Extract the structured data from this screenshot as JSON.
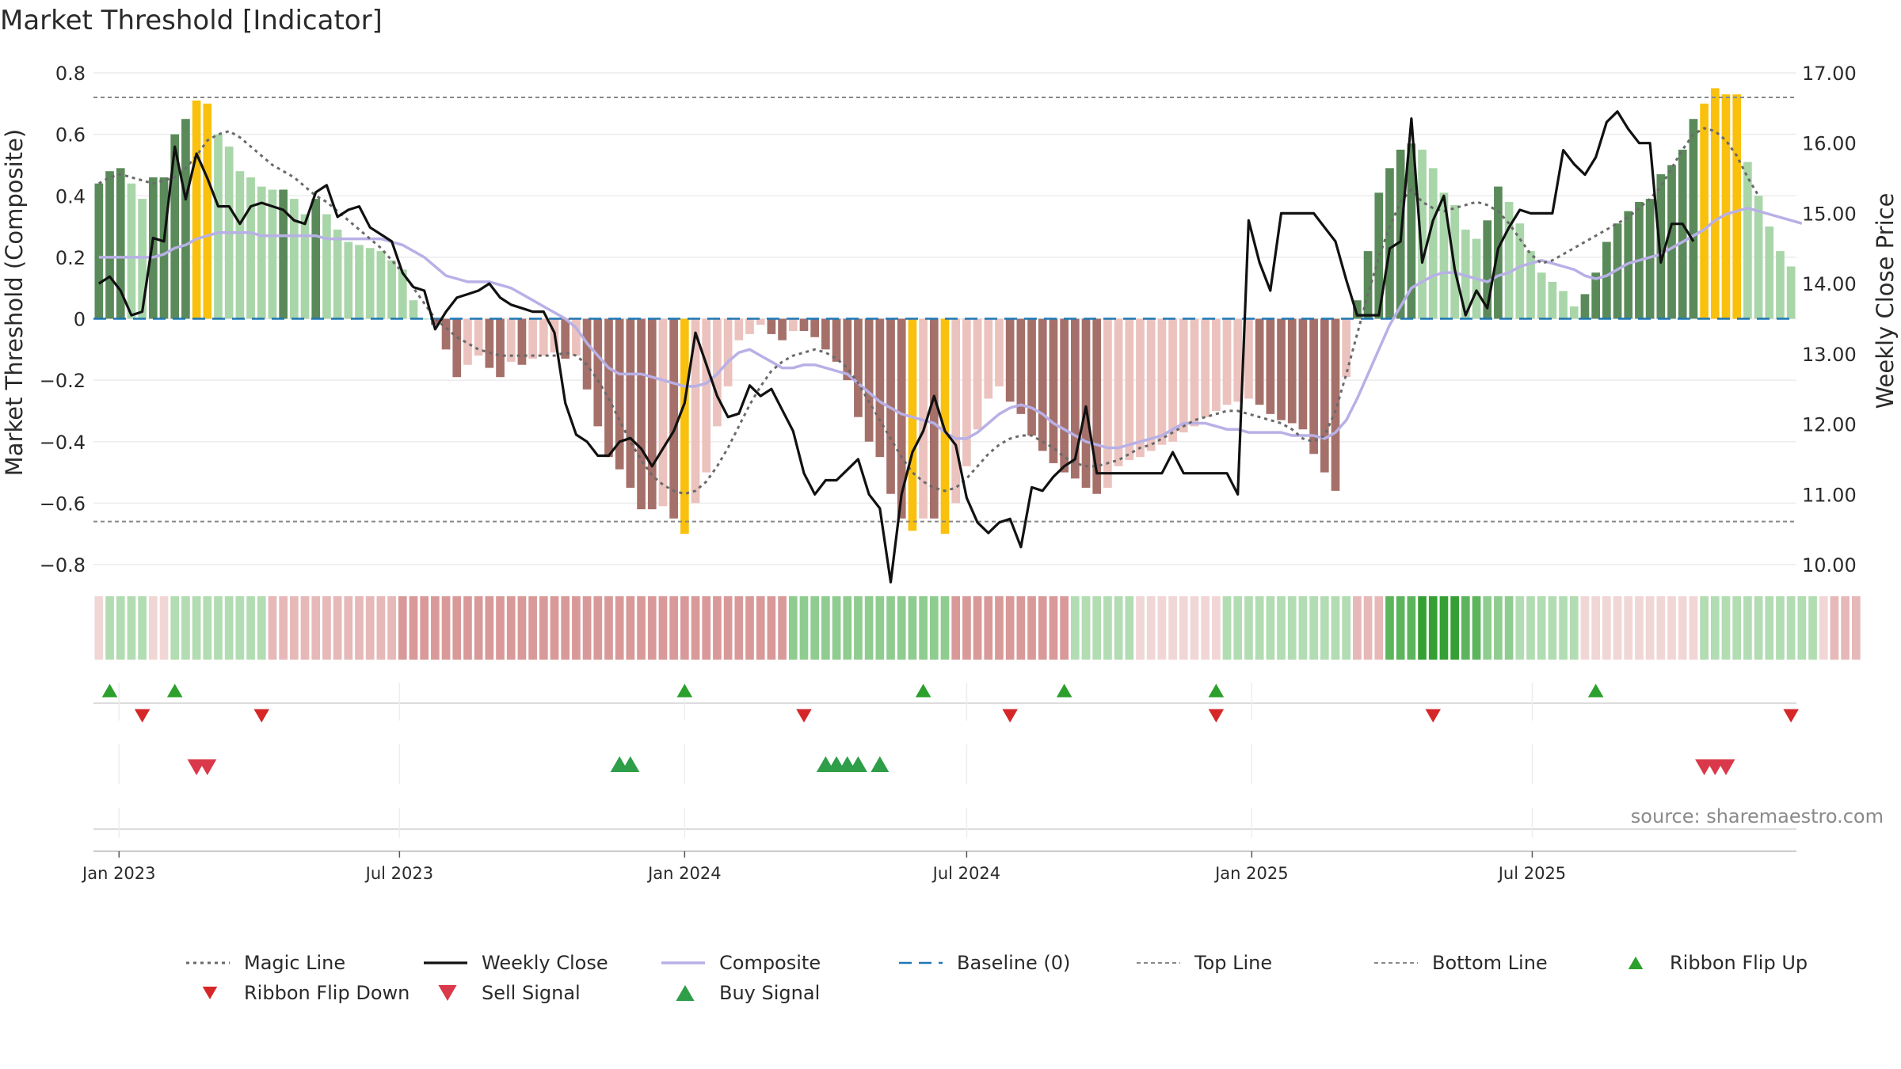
{
  "chart_data": {
    "type": "bar",
    "title": "Market Threshold [Indicator]",
    "ylabel_left": "Market Threshold (Composite)",
    "ylabel_right": "Weekly Close Price",
    "ylim_left": [
      -0.8,
      0.8
    ],
    "ylim_right": [
      10.0,
      17.0
    ],
    "y_ticks_left": [
      {
        "v": 0.8,
        "label": "0.8"
      },
      {
        "v": 0.6,
        "label": "0.6"
      },
      {
        "v": 0.4,
        "label": "0.4"
      },
      {
        "v": 0.2,
        "label": "0.2"
      },
      {
        "v": 0,
        "label": "0"
      },
      {
        "v": -0.2,
        "label": "−0.2"
      },
      {
        "v": -0.4,
        "label": "−0.4"
      },
      {
        "v": -0.6,
        "label": "−0.6"
      },
      {
        "v": -0.8,
        "label": "−0.8"
      }
    ],
    "y_ticks_right": [
      "17.00",
      "16.00",
      "15.00",
      "14.00",
      "13.00",
      "12.00",
      "11.00",
      "10.00"
    ],
    "x_ticks": [
      "Jan 2023",
      "Jul 2023",
      "Jan 2024",
      "Jul 2024",
      "Jan 2025",
      "Jul 2025"
    ],
    "top_line": 0.72,
    "bottom_line": -0.66,
    "baseline": 0,
    "composite_bars": [
      0.44,
      0.48,
      0.49,
      0.44,
      0.39,
      0.46,
      0.46,
      0.6,
      0.65,
      0.71,
      0.7,
      0.6,
      0.56,
      0.48,
      0.46,
      0.43,
      0.42,
      0.42,
      0.39,
      0.34,
      0.39,
      0.34,
      0.29,
      0.25,
      0.24,
      0.23,
      0.22,
      0.19,
      0.16,
      0.06,
      0,
      -0.02,
      -0.1,
      -0.19,
      -0.15,
      -0.12,
      -0.16,
      -0.19,
      -0.14,
      -0.15,
      -0.13,
      -0.12,
      -0.11,
      -0.13,
      -0.12,
      -0.23,
      -0.35,
      -0.45,
      -0.49,
      -0.55,
      -0.62,
      -0.62,
      -0.61,
      -0.65,
      -0.7,
      -0.6,
      -0.5,
      -0.35,
      -0.22,
      -0.07,
      -0.05,
      -0.02,
      -0.05,
      -0.07,
      -0.04,
      -0.04,
      -0.06,
      -0.1,
      -0.14,
      -0.2,
      -0.32,
      -0.4,
      -0.45,
      -0.57,
      -0.65,
      -0.69,
      -0.65,
      -0.65,
      -0.7,
      -0.6,
      -0.48,
      -0.36,
      -0.26,
      -0.22,
      -0.27,
      -0.31,
      -0.38,
      -0.43,
      -0.47,
      -0.5,
      -0.52,
      -0.55,
      -0.57,
      -0.55,
      -0.48,
      -0.46,
      -0.45,
      -0.43,
      -0.41,
      -0.4,
      -0.37,
      -0.35,
      -0.32,
      -0.3,
      -0.28,
      -0.27,
      -0.26,
      -0.28,
      -0.31,
      -0.33,
      -0.34,
      -0.36,
      -0.44,
      -0.5,
      -0.56,
      -0.19,
      0.06,
      0.22,
      0.41,
      0.49,
      0.55,
      0.57,
      0.55,
      0.49,
      0.41,
      0.37,
      0.29,
      0.26,
      0.32,
      0.43,
      0.38,
      0.31,
      0.22,
      0.15,
      0.12,
      0.09,
      0.04,
      0.08,
      0.15,
      0.25,
      0.31,
      0.35,
      0.38,
      0.39,
      0.47,
      0.5,
      0.55,
      0.65,
      0.7,
      0.75,
      0.73,
      0.73,
      0.51,
      0.4,
      0.3,
      0.22,
      0.17
    ],
    "bar_highlight_label": "magnitude above 0.68 shown in amber",
    "magic_line": [
      0.44,
      0.46,
      0.47,
      0.46,
      0.45,
      0.44,
      0.45,
      0.46,
      0.49,
      0.53,
      0.58,
      0.6,
      0.61,
      0.59,
      0.56,
      0.53,
      0.5,
      0.48,
      0.46,
      0.43,
      0.4,
      0.38,
      0.35,
      0.32,
      0.29,
      0.26,
      0.23,
      0.19,
      0.15,
      0.1,
      0.05,
      0.0,
      -0.03,
      -0.06,
      -0.08,
      -0.1,
      -0.11,
      -0.12,
      -0.12,
      -0.12,
      -0.12,
      -0.12,
      -0.12,
      -0.11,
      -0.12,
      -0.15,
      -0.2,
      -0.26,
      -0.33,
      -0.4,
      -0.46,
      -0.51,
      -0.54,
      -0.56,
      -0.57,
      -0.56,
      -0.53,
      -0.48,
      -0.42,
      -0.35,
      -0.28,
      -0.22,
      -0.17,
      -0.14,
      -0.12,
      -0.11,
      -0.1,
      -0.11,
      -0.13,
      -0.16,
      -0.21,
      -0.27,
      -0.33,
      -0.39,
      -0.45,
      -0.5,
      -0.53,
      -0.55,
      -0.56,
      -0.55,
      -0.52,
      -0.48,
      -0.44,
      -0.41,
      -0.39,
      -0.38,
      -0.38,
      -0.4,
      -0.42,
      -0.45,
      -0.47,
      -0.48,
      -0.48,
      -0.47,
      -0.46,
      -0.44,
      -0.42,
      -0.41,
      -0.39,
      -0.37,
      -0.35,
      -0.33,
      -0.32,
      -0.31,
      -0.3,
      -0.3,
      -0.31,
      -0.32,
      -0.33,
      -0.34,
      -0.36,
      -0.39,
      -0.4,
      -0.38,
      -0.3,
      -0.18,
      -0.05,
      0.08,
      0.2,
      0.3,
      0.38,
      0.42,
      0.38,
      0.36,
      0.35,
      0.36,
      0.37,
      0.38,
      0.37,
      0.35,
      0.31,
      0.26,
      0.21,
      0.18,
      0.19,
      0.21,
      0.23,
      0.25,
      0.27,
      0.29,
      0.31,
      0.33,
      0.36,
      0.39,
      0.43,
      0.49,
      0.55,
      0.6,
      0.62,
      0.61,
      0.58,
      0.53,
      0.46,
      0.4
    ],
    "composite_line": [
      0.2,
      0.2,
      0.2,
      0.2,
      0.2,
      0.2,
      0.21,
      0.23,
      0.24,
      0.26,
      0.27,
      0.28,
      0.28,
      0.28,
      0.28,
      0.27,
      0.27,
      0.27,
      0.27,
      0.27,
      0.27,
      0.26,
      0.26,
      0.26,
      0.26,
      0.26,
      0.26,
      0.25,
      0.24,
      0.22,
      0.2,
      0.17,
      0.14,
      0.13,
      0.12,
      0.12,
      0.12,
      0.11,
      0.1,
      0.08,
      0.06,
      0.04,
      0.02,
      0.0,
      -0.03,
      -0.08,
      -0.12,
      -0.16,
      -0.18,
      -0.18,
      -0.18,
      -0.19,
      -0.2,
      -0.21,
      -0.22,
      -0.22,
      -0.21,
      -0.18,
      -0.14,
      -0.11,
      -0.1,
      -0.12,
      -0.14,
      -0.16,
      -0.16,
      -0.15,
      -0.15,
      -0.16,
      -0.17,
      -0.18,
      -0.21,
      -0.24,
      -0.27,
      -0.29,
      -0.31,
      -0.32,
      -0.33,
      -0.34,
      -0.37,
      -0.39,
      -0.39,
      -0.37,
      -0.34,
      -0.31,
      -0.29,
      -0.28,
      -0.29,
      -0.31,
      -0.34,
      -0.36,
      -0.38,
      -0.4,
      -0.41,
      -0.42,
      -0.42,
      -0.41,
      -0.4,
      -0.39,
      -0.38,
      -0.36,
      -0.34,
      -0.34,
      -0.34,
      -0.35,
      -0.36,
      -0.36,
      -0.37,
      -0.37,
      -0.37,
      -0.37,
      -0.38,
      -0.38,
      -0.38,
      -0.39,
      -0.37,
      -0.33,
      -0.26,
      -0.18,
      -0.1,
      -0.02,
      0.04,
      0.1,
      0.12,
      0.14,
      0.15,
      0.15,
      0.14,
      0.13,
      0.12,
      0.14,
      0.15,
      0.17,
      0.18,
      0.19,
      0.18,
      0.17,
      0.16,
      0.14,
      0.13,
      0.14,
      0.16,
      0.18,
      0.19,
      0.2,
      0.21,
      0.23,
      0.25,
      0.27,
      0.29,
      0.32,
      0.34,
      0.35,
      0.36,
      0.35,
      0.34,
      0.33,
      0.32,
      0.31
    ],
    "weekly_close": [
      14.0,
      14.1,
      13.9,
      13.55,
      13.6,
      14.65,
      14.6,
      15.95,
      15.2,
      15.85,
      15.5,
      15.1,
      15.1,
      14.85,
      15.1,
      15.15,
      15.1,
      15.05,
      14.9,
      14.85,
      15.3,
      15.4,
      14.95,
      15.05,
      15.1,
      14.8,
      14.7,
      14.6,
      14.15,
      13.95,
      13.9,
      13.35,
      13.6,
      13.8,
      13.85,
      13.9,
      14.0,
      13.8,
      13.7,
      13.65,
      13.6,
      13.6,
      13.3,
      12.3,
      11.85,
      11.75,
      11.55,
      11.55,
      11.75,
      11.8,
      11.65,
      11.4,
      11.65,
      11.9,
      12.3,
      13.3,
      12.85,
      12.4,
      12.1,
      12.15,
      12.55,
      12.4,
      12.5,
      12.2,
      11.9,
      11.3,
      11.0,
      11.2,
      11.2,
      11.35,
      11.5,
      11.0,
      10.8,
      9.75,
      11.0,
      11.6,
      11.9,
      12.4,
      11.9,
      11.7,
      10.95,
      10.6,
      10.45,
      10.6,
      10.65,
      10.25,
      11.1,
      11.05,
      11.25,
      11.4,
      11.5,
      12.25,
      11.3,
      11.3,
      11.3,
      11.3,
      11.3,
      11.3,
      11.3,
      11.6,
      11.3,
      11.3,
      11.3,
      11.3,
      11.3,
      11.0,
      14.9,
      14.3,
      13.9,
      15.0,
      15.0,
      15.0,
      15.0,
      14.8,
      14.6,
      14.05,
      13.55,
      13.55,
      13.55,
      14.5,
      14.6,
      16.35,
      14.3,
      14.9,
      15.25,
      14.2,
      13.55,
      13.9,
      13.65,
      14.5,
      14.8,
      15.05,
      15.0,
      15.0,
      15.0,
      15.9,
      15.7,
      15.55,
      15.8,
      16.3,
      16.45,
      16.2,
      16.0,
      16.0,
      14.3,
      14.85,
      14.85,
      14.6
    ],
    "ribbon": [
      -1,
      1,
      1,
      1,
      1,
      -1,
      -1,
      1,
      1,
      1,
      1,
      1,
      1,
      1,
      1,
      1,
      -2,
      -2,
      -2,
      -2,
      -2,
      -2,
      -2,
      -2,
      -2,
      -2,
      -2,
      -2,
      -3,
      -3,
      -3,
      -3,
      -3,
      -3,
      -3,
      -3,
      -3,
      -3,
      -3,
      -3,
      -3,
      -3,
      -3,
      -3,
      -3,
      -3,
      -3,
      -3,
      -3,
      -3,
      -3,
      -3,
      -3,
      -3,
      -3,
      -3,
      -3,
      -3,
      -3,
      -3,
      -3,
      -3,
      -3,
      -3,
      2,
      2,
      2,
      2,
      2,
      2,
      2,
      2,
      2,
      2,
      2,
      2,
      2,
      2,
      2,
      -3,
      -3,
      -3,
      -3,
      -3,
      -3,
      -3,
      -3,
      -3,
      -3,
      -3,
      1,
      1,
      1,
      1,
      1,
      1,
      -1,
      -1,
      -1,
      -1,
      -1,
      -1,
      -1,
      -1,
      1,
      1,
      1,
      1,
      1,
      1,
      1,
      1,
      1,
      1,
      1,
      1,
      -2,
      -2,
      -2,
      3,
      3,
      3,
      4,
      4,
      4,
      4,
      3,
      3,
      2,
      2,
      2,
      1,
      1,
      1,
      1,
      1,
      1,
      -1,
      -1,
      -1,
      -1,
      -1,
      -1,
      -1,
      -1,
      -1,
      -1,
      -1,
      1,
      1,
      1,
      1,
      1,
      1,
      1,
      1,
      1,
      1,
      1,
      -1,
      -2,
      -2,
      -2
    ],
    "ribbon_flip_up_at": [
      1,
      7,
      54,
      76,
      89,
      103,
      138
    ],
    "ribbon_flip_down_at": [
      4,
      15,
      65,
      84,
      103,
      123,
      156
    ],
    "sell_signal_at": [
      9,
      10,
      148,
      149,
      150
    ],
    "buy_signal_at": [
      48,
      49,
      67,
      68,
      69,
      70,
      72
    ],
    "legend": [
      {
        "key": "magic",
        "label": "Magic Line"
      },
      {
        "key": "close",
        "label": "Weekly Close"
      },
      {
        "key": "composite",
        "label": "Composite"
      },
      {
        "key": "baseline",
        "label": "Baseline (0)"
      },
      {
        "key": "top",
        "label": "Top Line"
      },
      {
        "key": "bottom",
        "label": "Bottom Line"
      },
      {
        "key": "flipup",
        "label": "Ribbon Flip Up"
      },
      {
        "key": "flipdown",
        "label": "Ribbon Flip Down"
      },
      {
        "key": "sell",
        "label": "Sell Signal"
      },
      {
        "key": "buy",
        "label": "Buy Signal"
      }
    ],
    "colors": {
      "pos_dark": "#5a8a5a",
      "pos_light": "#a9d6a9",
      "neg_dark": "#a57069",
      "neg_light": "#ebc2bd",
      "amber": "#f9c10e",
      "magic": "#6a6a6a",
      "close": "#111111",
      "composite": "#b8b0e6",
      "baseline": "#1f77b4",
      "threshold": "#888888",
      "flipup": "#2ca02c",
      "flipdown": "#d62728",
      "sell": "#d9394a",
      "buy": "#2e9e48"
    }
  },
  "source": "source: sharemaestro.com"
}
